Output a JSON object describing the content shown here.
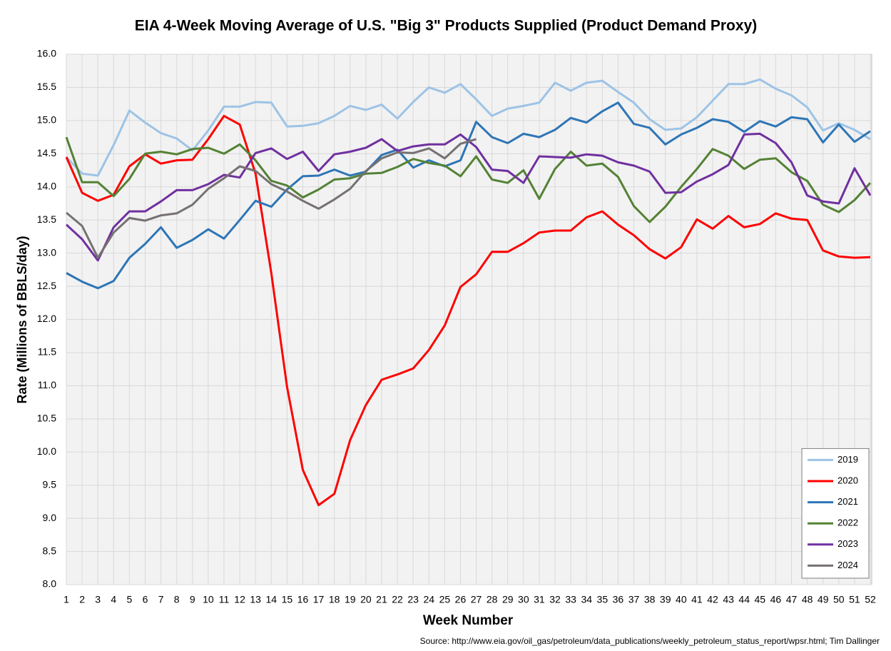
{
  "chart_data": {
    "type": "line",
    "title": "EIA 4-Week Moving Average of U.S. \"Big 3\" Products Supplied (Product Demand Proxy)",
    "xlabel": "Week Number",
    "ylabel": "Rate (Millions of BBLS/day)",
    "source": "Source: http://www.eia.gov/oil_gas/petroleum/data_publications/weekly_petroleum_status_report/wpsr.html; Tim Dallinger",
    "x": [
      1,
      2,
      3,
      4,
      5,
      6,
      7,
      8,
      9,
      10,
      11,
      12,
      13,
      14,
      15,
      16,
      17,
      18,
      19,
      20,
      21,
      22,
      23,
      24,
      25,
      26,
      27,
      28,
      29,
      30,
      31,
      32,
      33,
      34,
      35,
      36,
      37,
      38,
      39,
      40,
      41,
      42,
      43,
      44,
      45,
      46,
      47,
      48,
      49,
      50,
      51,
      52
    ],
    "xlim": [
      1,
      52
    ],
    "xticks": [
      1,
      2,
      3,
      4,
      5,
      6,
      7,
      8,
      9,
      10,
      11,
      12,
      13,
      14,
      15,
      16,
      17,
      18,
      19,
      20,
      21,
      22,
      23,
      24,
      25,
      26,
      27,
      28,
      29,
      30,
      31,
      32,
      33,
      34,
      35,
      36,
      37,
      38,
      39,
      40,
      41,
      42,
      43,
      44,
      45,
      46,
      47,
      48,
      49,
      50,
      51,
      52
    ],
    "ylim": [
      8,
      16
    ],
    "yticks": [
      {
        "value": 8,
        "label": "8.0"
      },
      {
        "value": 8.5,
        "label": "8.5"
      },
      {
        "value": 9,
        "label": "9.0"
      },
      {
        "value": 9.5,
        "label": "9.5"
      },
      {
        "value": 10,
        "label": "10.0"
      },
      {
        "value": 10.5,
        "label": "10.5"
      },
      {
        "value": 11,
        "label": "11.0"
      },
      {
        "value": 11.5,
        "label": "11.5"
      },
      {
        "value": 12,
        "label": "12.0"
      },
      {
        "value": 12.5,
        "label": "12.5"
      },
      {
        "value": 13,
        "label": "13.0"
      },
      {
        "value": 13.5,
        "label": "13.5"
      },
      {
        "value": 14,
        "label": "14.0"
      },
      {
        "value": 14.5,
        "label": "14.5"
      },
      {
        "value": 15,
        "label": "15.0"
      },
      {
        "value": 15.5,
        "label": "15.5"
      },
      {
        "value": 16,
        "label": "16.0"
      }
    ],
    "grid": true,
    "legend": "lower right",
    "series": [
      {
        "name": "2019",
        "color": "#9dc3e6",
        "values": [
          14.45,
          14.2,
          14.17,
          14.63,
          15.15,
          14.97,
          14.81,
          14.73,
          14.55,
          14.85,
          15.21,
          15.21,
          15.28,
          15.27,
          14.91,
          14.92,
          14.96,
          15.07,
          15.22,
          15.16,
          15.24,
          15.03,
          15.28,
          15.5,
          15.42,
          15.55,
          15.32,
          15.07,
          15.18,
          15.22,
          15.27,
          15.57,
          15.45,
          15.57,
          15.6,
          15.43,
          15.27,
          15.02,
          14.86,
          14.88,
          15.05,
          15.3,
          15.55,
          15.55,
          15.62,
          15.48,
          15.38,
          15.2,
          14.85,
          14.96,
          14.86,
          14.72
        ]
      },
      {
        "name": "2020",
        "color": "#ff0000",
        "values": [
          14.45,
          13.91,
          13.79,
          13.88,
          14.31,
          14.49,
          14.35,
          14.4,
          14.41,
          14.72,
          15.07,
          14.94,
          14.2,
          12.7,
          10.98,
          9.73,
          9.2,
          9.37,
          10.18,
          10.71,
          11.09,
          11.17,
          11.26,
          11.54,
          11.91,
          12.49,
          12.68,
          13.02,
          13.02,
          13.15,
          13.31,
          13.34,
          13.34,
          13.54,
          13.63,
          13.43,
          13.27,
          13.06,
          12.92,
          13.09,
          13.51,
          13.37,
          13.56,
          13.39,
          13.44,
          13.6,
          13.52,
          13.5,
          13.04,
          12.95,
          12.93,
          12.94
        ]
      },
      {
        "name": "2021",
        "color": "#2e75b6",
        "values": [
          12.7,
          12.57,
          12.47,
          12.58,
          12.93,
          13.14,
          13.39,
          13.08,
          13.2,
          13.36,
          13.22,
          13.5,
          13.79,
          13.7,
          13.96,
          14.16,
          14.17,
          14.26,
          14.17,
          14.23,
          14.48,
          14.56,
          14.29,
          14.4,
          14.31,
          14.4,
          14.98,
          14.75,
          14.66,
          14.8,
          14.75,
          14.86,
          15.04,
          14.97,
          15.14,
          15.27,
          14.95,
          14.89,
          14.64,
          14.79,
          14.89,
          15.02,
          14.98,
          14.83,
          14.99,
          14.91,
          15.05,
          15.02,
          14.67,
          14.94,
          14.68,
          14.84
        ]
      },
      {
        "name": "2022",
        "color": "#548235",
        "values": [
          14.75,
          14.07,
          14.07,
          13.86,
          14.12,
          14.5,
          14.53,
          14.49,
          14.57,
          14.59,
          14.5,
          14.64,
          14.4,
          14.09,
          14.02,
          13.84,
          13.96,
          14.11,
          14.13,
          14.2,
          14.21,
          14.3,
          14.42,
          14.36,
          14.32,
          14.16,
          14.46,
          14.11,
          14.06,
          14.25,
          13.82,
          14.27,
          14.53,
          14.32,
          14.35,
          14.15,
          13.71,
          13.47,
          13.7,
          14.0,
          14.27,
          14.57,
          14.47,
          14.27,
          14.41,
          14.43,
          14.22,
          14.09,
          13.73,
          13.62,
          13.8,
          14.06
        ]
      },
      {
        "name": "2023",
        "color": "#7030a0",
        "values": [
          13.43,
          13.21,
          12.89,
          13.39,
          13.63,
          13.63,
          13.78,
          13.95,
          13.95,
          14.04,
          14.18,
          14.14,
          14.51,
          14.58,
          14.42,
          14.53,
          14.24,
          14.49,
          14.53,
          14.59,
          14.72,
          14.54,
          14.61,
          14.64,
          14.64,
          14.79,
          14.6,
          14.26,
          14.24,
          14.06,
          14.46,
          14.45,
          14.44,
          14.49,
          14.47,
          14.37,
          14.32,
          14.23,
          13.91,
          13.92,
          14.08,
          14.19,
          14.33,
          14.79,
          14.8,
          14.66,
          14.37,
          13.87,
          13.78,
          13.75,
          14.28,
          13.87
        ]
      },
      {
        "name": "2024",
        "color": "#767171",
        "values": [
          13.61,
          13.41,
          12.93,
          13.31,
          13.53,
          13.49,
          13.57,
          13.6,
          13.73,
          13.97,
          14.13,
          14.31,
          14.24,
          14.04,
          13.93,
          13.79,
          13.67,
          13.81,
          13.97,
          14.24,
          14.43,
          14.52,
          14.51,
          14.58,
          14.43,
          14.65,
          14.72,
          null,
          null,
          null,
          null,
          null,
          null,
          null,
          null,
          null,
          null,
          null,
          null,
          null,
          null,
          null,
          null,
          null,
          null,
          null,
          null,
          null,
          null,
          null,
          null,
          null
        ]
      }
    ]
  }
}
